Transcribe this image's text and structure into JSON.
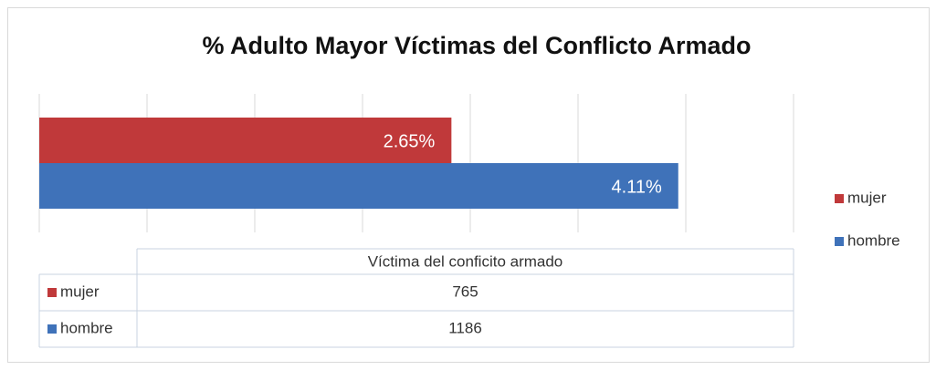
{
  "chart_data": {
    "type": "bar",
    "orientation": "horizontal",
    "title": "% Adulto Mayor Víctimas del Conflicto Armado",
    "categories": [
      "Víctima del conficito armado"
    ],
    "series": [
      {
        "name": "mujer",
        "color": "#c0393a",
        "values": [
          765
        ],
        "labels": [
          "2.65%"
        ]
      },
      {
        "name": "hombre",
        "color": "#3f72b9",
        "values": [
          1186
        ],
        "labels": [
          "4.11%"
        ]
      }
    ],
    "xlim": [
      0,
      1400
    ],
    "xticks": [
      0,
      200,
      400,
      600,
      800,
      1000,
      1200,
      1400
    ],
    "grid": true,
    "legend": "right",
    "data_table": true
  }
}
